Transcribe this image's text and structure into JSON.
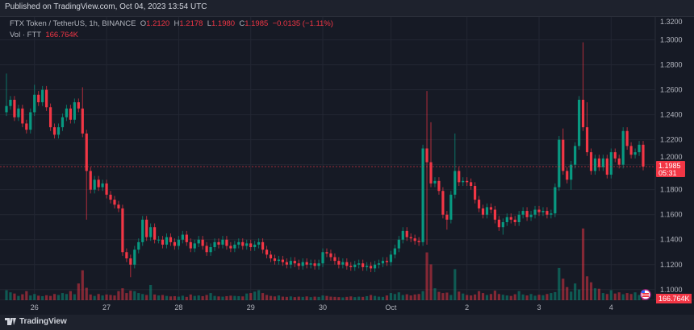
{
  "published": "Published on TradingView.com, Oct 04, 2023 13:54 UTC",
  "legend": {
    "symbol": "FTX Token / TetherUS, 1h, BINANCE",
    "o_label": "O",
    "o": "1.2120",
    "h_label": "H",
    "h": "1.2178",
    "l_label": "L",
    "l": "1.1980",
    "c_label": "C",
    "c": "1.1985",
    "change": "−0.0135 (−1.11%)",
    "vol_label": "Vol · FTT",
    "vol": "166.764K"
  },
  "price_label": {
    "price": "1.1985",
    "countdown": "05:31"
  },
  "volume_label": "166.764K",
  "footer": {
    "brand": "TradingView"
  },
  "colors": {
    "up": "#089981",
    "down": "#f23645",
    "background": "#161a25",
    "grid": "#232733"
  },
  "chart_data": {
    "type": "candlestick",
    "interval": "1h",
    "ylim": [
      1.0915,
      1.3235
    ],
    "y_ticks": [
      "1.1000",
      "1.1200",
      "1.1400",
      "1.1600",
      "1.1800",
      "1.2000",
      "1.2200",
      "1.2400",
      "1.2600",
      "1.2800",
      "1.3000",
      "1.3200"
    ],
    "x_ticks": [
      {
        "label": "26",
        "index": 7
      },
      {
        "label": "27",
        "index": 25
      },
      {
        "label": "28",
        "index": 43
      },
      {
        "label": "29",
        "index": 61
      },
      {
        "label": "30",
        "index": 79
      },
      {
        "label": "Oct",
        "index": 96
      },
      {
        "label": "2",
        "index": 115
      },
      {
        "label": "3",
        "index": 133
      },
      {
        "label": "4",
        "index": 151
      }
    ],
    "first_open": 1.242,
    "close": [
      1.247,
      1.252,
      1.238,
      1.245,
      1.233,
      1.228,
      1.242,
      1.256,
      1.25,
      1.26,
      1.246,
      1.23,
      1.224,
      1.23,
      1.238,
      1.245,
      1.236,
      1.25,
      1.245,
      1.225,
      1.195,
      1.18,
      1.188,
      1.182,
      1.185,
      1.176,
      1.172,
      1.168,
      1.165,
      1.13,
      1.125,
      1.12,
      1.132,
      1.138,
      1.156,
      1.142,
      1.15,
      1.14,
      1.14,
      1.136,
      1.142,
      1.138,
      1.135,
      1.14,
      1.144,
      1.138,
      1.133,
      1.137,
      1.14,
      1.135,
      1.13,
      1.134,
      1.138,
      1.136,
      1.14,
      1.135,
      1.133,
      1.136,
      1.138,
      1.135,
      1.137,
      1.134,
      1.136,
      1.138,
      1.132,
      1.128,
      1.125,
      1.123,
      1.124,
      1.122,
      1.12,
      1.123,
      1.121,
      1.119,
      1.122,
      1.12,
      1.121,
      1.119,
      1.121,
      1.13,
      1.129,
      1.126,
      1.123,
      1.12,
      1.122,
      1.119,
      1.118,
      1.12,
      1.121,
      1.118,
      1.119,
      1.117,
      1.12,
      1.121,
      1.123,
      1.122,
      1.128,
      1.133,
      1.14,
      1.147,
      1.142,
      1.141,
      1.139,
      1.138,
      1.213,
      1.202,
      1.185,
      1.187,
      1.179,
      1.16,
      1.156,
      1.176,
      1.195,
      1.186,
      1.187,
      1.186,
      1.183,
      1.172,
      1.165,
      1.16,
      1.166,
      1.164,
      1.156,
      1.15,
      1.154,
      1.158,
      1.156,
      1.154,
      1.16,
      1.163,
      1.158,
      1.16,
      1.164,
      1.162,
      1.163,
      1.16,
      1.161,
      1.182,
      1.22,
      1.195,
      1.188,
      1.2,
      1.215,
      1.252,
      1.23,
      1.21,
      1.195,
      1.205,
      1.198,
      1.205,
      1.192,
      1.21,
      1.205,
      1.2,
      1.227,
      1.215,
      1.208,
      1.21,
      1.216,
      1.1985
    ],
    "notable_highs": {
      "0": 1.273,
      "7": 1.264,
      "19": 1.262,
      "105": 1.259,
      "106": 1.234,
      "112": 1.225,
      "139": 1.229,
      "144": 1.298,
      "145": 1.25,
      "155": 1.23,
      "160": 1.2178
    },
    "notable_lows": {
      "20": 1.156,
      "31": 1.11,
      "105": 1.136,
      "110": 1.148,
      "124": 1.144,
      "141": 1.18,
      "160": 1.198
    },
    "volume_k": [
      420,
      330,
      280,
      180,
      250,
      380,
      200,
      260,
      190,
      170,
      210,
      180,
      260,
      220,
      300,
      260,
      380,
      250,
      700,
      1250,
      520,
      240,
      180,
      260,
      200,
      240,
      220,
      200,
      380,
      500,
      300,
      400,
      380,
      300,
      260,
      220,
      640,
      240,
      200,
      220,
      180,
      160,
      170,
      150,
      190,
      140,
      240,
      180,
      200,
      170,
      220,
      300,
      180,
      160,
      150,
      170,
      190,
      180,
      170,
      160,
      280,
      300,
      360,
      420,
      300,
      220,
      180,
      160,
      200,
      150,
      140,
      160,
      130,
      150,
      140,
      160,
      130,
      150,
      140,
      200,
      180,
      150,
      140,
      130,
      120,
      140,
      160,
      130,
      150,
      140,
      170,
      220,
      180,
      150,
      140,
      200,
      300,
      260,
      330,
      220,
      250,
      200,
      240,
      260,
      380,
      2000,
      1500,
      500,
      350,
      300,
      320,
      220,
      1300,
      360,
      280,
      220,
      200,
      240,
      380,
      300,
      220,
      260,
      400,
      260,
      230,
      200,
      180,
      250,
      380,
      240,
      200,
      260,
      190,
      230,
      210,
      260,
      300,
      340,
      1350,
      900,
      550,
      360,
      700,
      450,
      3000,
      1000,
      750,
      500,
      480,
      300,
      260,
      420,
      280,
      330,
      250,
      300,
      260,
      330,
      220,
      280,
      167
    ]
  }
}
